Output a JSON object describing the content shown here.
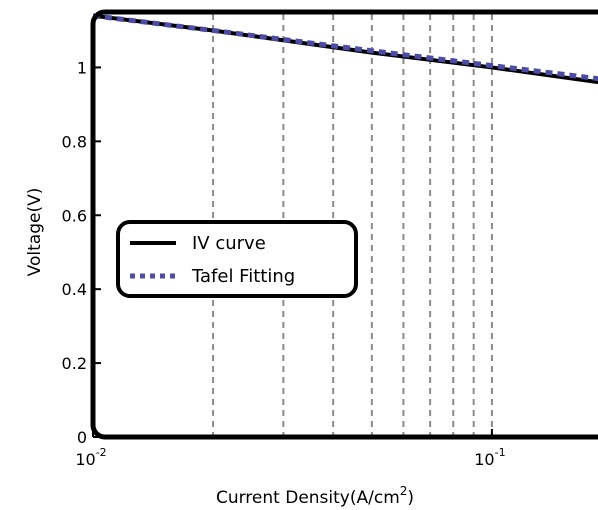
{
  "chart_data": {
    "type": "line",
    "x_scale": "log",
    "xlim": [
      0.01,
      0.2
    ],
    "ylim": [
      0,
      1.15
    ],
    "grid": "x-only-dashed",
    "x_tick_labels": [
      {
        "value": 0.01,
        "base": "10",
        "exp": "-2"
      },
      {
        "value": 0.1,
        "base": "10",
        "exp": "-1"
      }
    ],
    "y_ticks": [
      0,
      0.2,
      0.4,
      0.6,
      0.8,
      1
    ],
    "y_tick_labels": [
      "0",
      "0.2",
      "0.4",
      "0.6",
      "0.8",
      "1"
    ],
    "xlabel": "Current Density(A/cm",
    "xlabel_sup": "2",
    "xlabel_suffix": ")",
    "ylabel": "Voltage(V)",
    "legend": {
      "placement": "center-left",
      "entries": [
        "IV curve",
        "Tafel Fitting"
      ]
    },
    "series": [
      {
        "name": "IV curve",
        "color": "#000000",
        "style": "solid",
        "x": [
          0.01,
          0.02,
          0.05,
          0.1,
          0.2
        ],
        "y": [
          1.14,
          1.1,
          1.04,
          1.0,
          0.955
        ]
      },
      {
        "name": "Tafel Fitting",
        "color": "#4b4ba8",
        "style": "dotted",
        "x": [
          0.01,
          0.02,
          0.05,
          0.1,
          0.2
        ],
        "y": [
          1.14,
          1.1,
          1.045,
          1.005,
          0.965
        ]
      }
    ]
  }
}
